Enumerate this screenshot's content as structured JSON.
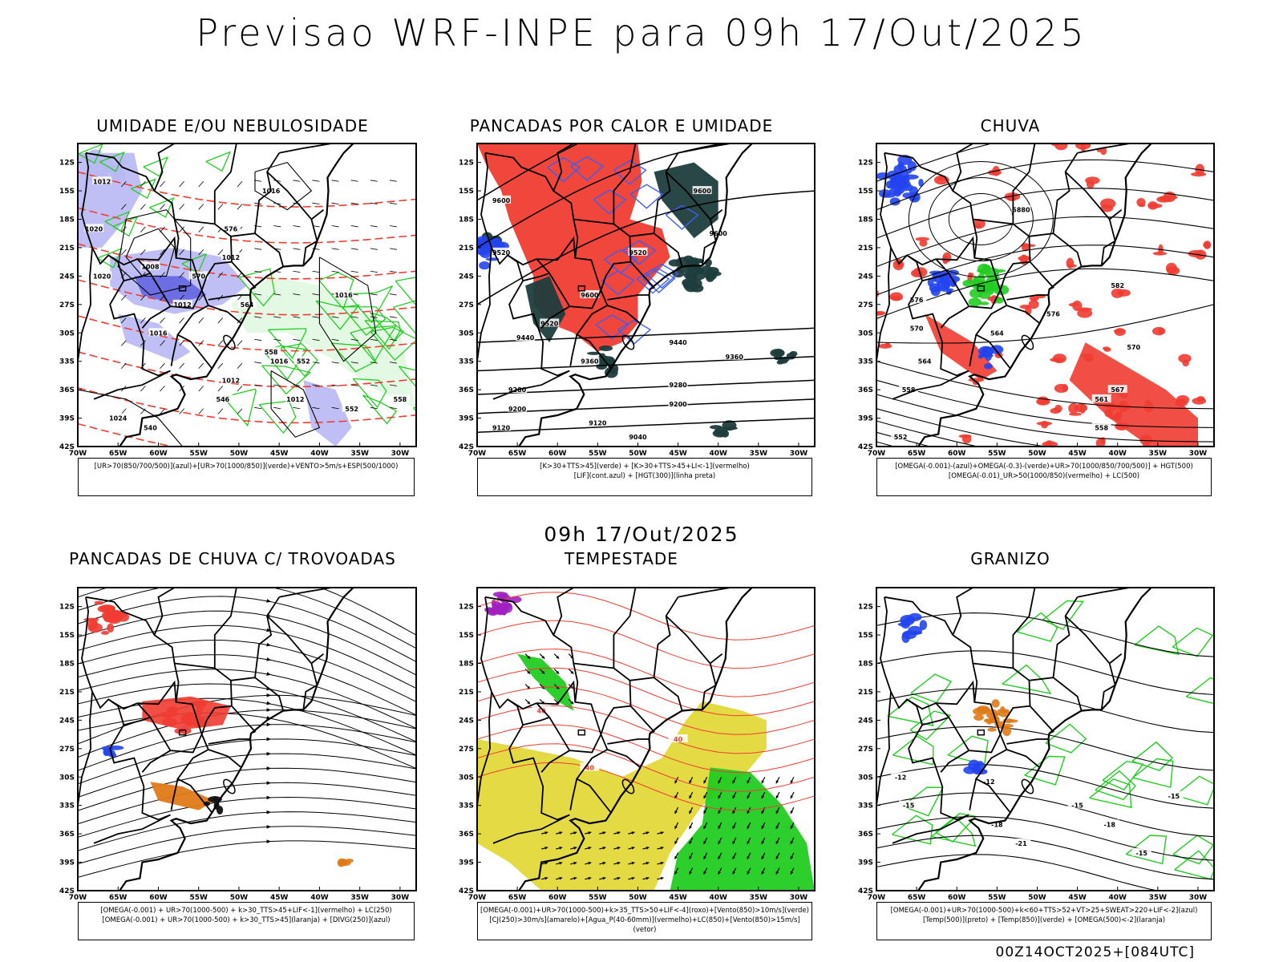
{
  "header": {
    "title": "Previsao WRF-INPE  para 09h 17/Out/2025"
  },
  "mid_date": "09h 17/Out/2025",
  "footer": "00Z14OCT2025+[084UTC]",
  "axes": {
    "lat_labels": [
      "12S",
      "15S",
      "18S",
      "21S",
      "24S",
      "27S",
      "30S",
      "33S",
      "36S",
      "39S",
      "42S"
    ],
    "lon_labels": [
      "70W",
      "65W",
      "60W",
      "55W",
      "50W",
      "45W",
      "40W",
      "35W",
      "30W"
    ]
  },
  "panels": [
    {
      "title": "UMIDADE E/OU NEBULOSIDADE",
      "legend": [
        "[UR>70(850/700/500)](azul)+[UR>70(1000/850)](verde)+VENTO>5m/s+ESP(500/1000)"
      ],
      "labels": [
        "1012",
        "1016",
        "1012",
        "1008",
        "1012",
        "1020",
        "1016",
        "1024",
        "1016",
        "1012",
        "1012",
        "1016",
        "1020",
        "576",
        "570",
        "564",
        "558",
        "552",
        "546",
        "540",
        "552",
        "558"
      ]
    },
    {
      "title": "PANCADAS POR CALOR E UMIDADE",
      "legend": [
        "[K>30+TTS>45](verde) + [K>30+TTS>45+LI<-1](vermelho)",
        "[LIF](cont.azul) + [HGT(300)](linha preta)"
      ],
      "labels": [
        "9600",
        "9520",
        "9600",
        "9600",
        "9520",
        "9440",
        "9360",
        "9280",
        "9200",
        "9120",
        "9040",
        "9440",
        "9360",
        "9280",
        "9200",
        "9120",
        "9600",
        "9520"
      ]
    },
    {
      "title": "CHUVA",
      "legend": [
        "[OMEGA(-0.001)-(azul)+OMEGA(-0.3)-(verde)+UR>70(1000/850/700/500)] + HGT(500)",
        "[OMEGA(-0.01)_UR>50(1000/850)(vermelho) + LC(500)"
      ],
      "labels": [
        "5880",
        "582",
        "576",
        "570",
        "564",
        "558",
        "552",
        "576",
        "570",
        "567",
        "561",
        "558",
        "564"
      ]
    },
    {
      "title": "PANCADAS DE CHUVA C/ TROVOADAS",
      "legend": [
        "[OMEGA(-0.001) + UR>70(1000-500) + k>30_TTS>45+LIF<-1](vermelho) + LC(250)",
        "[OMEGA(-0.001) + UR>70(1000-500) + k>30_TTS>45](laranja) + [DIVG(250)](azul)"
      ],
      "labels": []
    },
    {
      "title": "TEMPESTADE",
      "legend": [
        "[OMEGA(-0.001)+UR>70(1000-500)+k>35_TTS>50+LIF<-4](roxo)+[Vento(850)>10m/s](verde)",
        "[CJ(250)>30m/s](amarelo)+[Agua_P(40-60mm)](vermelho)+LC(850)+[Vento(850)>15m/s](vetor)"
      ],
      "labels": [
        "40",
        "40",
        "40"
      ]
    },
    {
      "title": "GRANIZO",
      "legend": [
        "[OMEGA(-0.001)+UR>70(1000-500)+k<60+TTS>52+VT>25+SWEAT>220+LIF<-2](azul)",
        "[Temp(500)](preto) + [Temp(850)](verde) + [OMEGA(500)<-2](laranja)"
      ],
      "labels": [
        "-12",
        "-12",
        "-15",
        "-15",
        "-18",
        "-21",
        "-15",
        "-18",
        "-15"
      ]
    }
  ],
  "colors": {
    "red": "#f03c32",
    "green": "#22cc22",
    "blue": "#2244ee",
    "lavender": "#b8b8f4",
    "darkteal": "#1f3d3d",
    "yellow": "#e2d83a",
    "orange": "#e07a18",
    "purple": "#a020c0"
  }
}
